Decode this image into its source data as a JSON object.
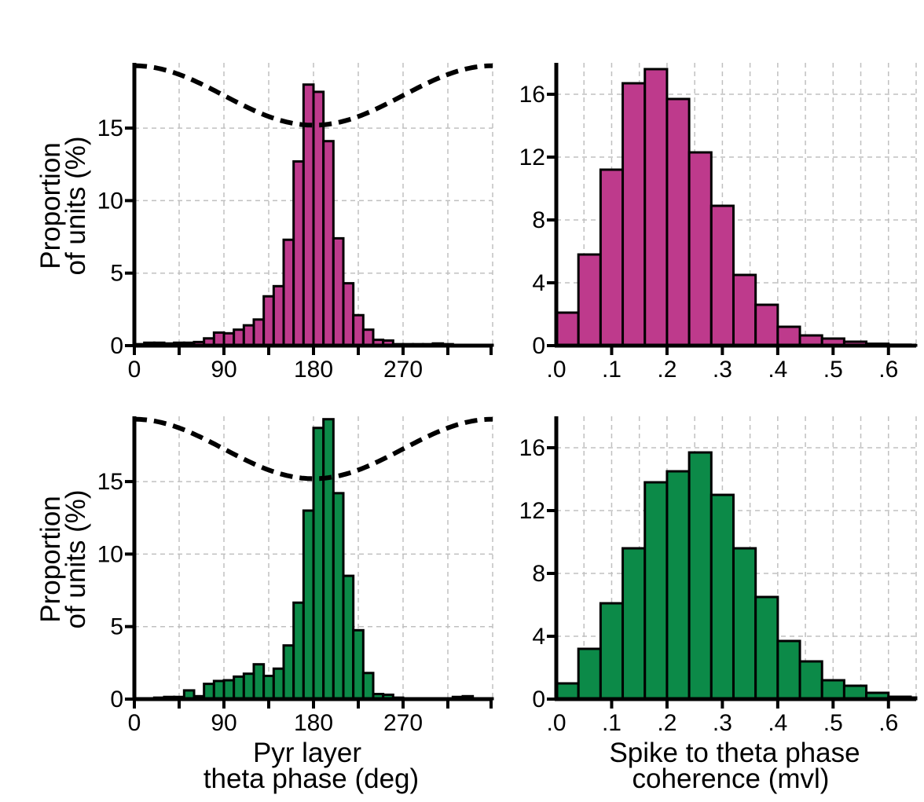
{
  "colors": {
    "magenta": "#BE3A8C",
    "green": "#0C8A48",
    "grid": "#c0c0c0",
    "axis": "#000000"
  },
  "labels": {
    "ylabel_line1": "Proportion",
    "ylabel_line2": "of units (%)",
    "xlabel_phase_line1": "Pyr layer",
    "xlabel_phase_line2": "theta phase (deg)",
    "xlabel_mvl_line1": "Spike to theta phase",
    "xlabel_mvl_line2": "coherence (mvl)"
  },
  "chart_data": [
    {
      "id": "phase-magenta",
      "type": "bar",
      "color": "magenta",
      "xlim": [
        0,
        360
      ],
      "ylim": [
        0,
        19.5
      ],
      "xticks": [
        0,
        90,
        180,
        270
      ],
      "xtick_labels": [
        "0",
        "90",
        "180",
        "270"
      ],
      "yticks": [
        0,
        5,
        10,
        15
      ],
      "ytick_labels": [
        "0",
        "5",
        "10",
        "15"
      ],
      "bin_width": 10,
      "bin_starts": [
        0,
        10,
        20,
        30,
        40,
        50,
        60,
        70,
        80,
        90,
        100,
        110,
        120,
        130,
        140,
        150,
        160,
        170,
        180,
        190,
        200,
        210,
        220,
        230,
        240,
        250,
        260,
        270,
        280,
        290,
        300,
        310,
        320,
        330,
        340,
        350
      ],
      "values": [
        0.1,
        0.2,
        0.2,
        0.15,
        0.2,
        0.2,
        0.25,
        0.5,
        0.9,
        0.85,
        1.1,
        1.4,
        1.8,
        3.4,
        4.1,
        7.3,
        12.7,
        18.0,
        17.5,
        14.1,
        7.4,
        4.3,
        2.1,
        1.1,
        0.4,
        0.35,
        0.1,
        0.1,
        0.1,
        0.1,
        0.15,
        0.1,
        0.05,
        0.05,
        0.05,
        0.05
      ],
      "reference_wave": {
        "style": "dashed",
        "min_at_deg": 180,
        "value_at_0": 19.3,
        "value_at_180": 15.2
      },
      "xlabel": "",
      "ylabel": ""
    },
    {
      "id": "mvl-magenta",
      "type": "bar",
      "color": "magenta",
      "xlim": [
        0,
        0.65
      ],
      "ylim": [
        0,
        18
      ],
      "xticks": [
        0,
        0.1,
        0.2,
        0.3,
        0.4,
        0.5,
        0.6
      ],
      "xtick_labels": [
        ".0",
        ".1",
        ".2",
        ".3",
        ".4",
        ".5",
        ".6"
      ],
      "yticks": [
        0,
        4,
        8,
        12,
        16
      ],
      "ytick_labels": [
        "0",
        "4",
        "8",
        "12",
        "16"
      ],
      "bin_width": 0.04,
      "bin_starts": [
        0,
        0.04,
        0.08,
        0.12,
        0.16,
        0.2,
        0.24,
        0.28,
        0.32,
        0.36,
        0.4,
        0.44,
        0.48,
        0.52,
        0.56,
        0.6,
        0.64
      ],
      "values": [
        2.1,
        5.8,
        11.2,
        16.7,
        17.6,
        15.7,
        12.3,
        8.9,
        4.5,
        2.6,
        1.2,
        0.65,
        0.45,
        0.25,
        0.12,
        0.06,
        0.03
      ],
      "xlabel": "",
      "ylabel": ""
    },
    {
      "id": "phase-green",
      "type": "bar",
      "color": "green",
      "xlim": [
        0,
        360
      ],
      "ylim": [
        0,
        19.5
      ],
      "xticks": [
        0,
        90,
        180,
        270
      ],
      "xtick_labels": [
        "0",
        "90",
        "180",
        "270"
      ],
      "yticks": [
        0,
        5,
        10,
        15
      ],
      "ytick_labels": [
        "0",
        "5",
        "10",
        "15"
      ],
      "bin_width": 10,
      "bin_starts": [
        0,
        10,
        20,
        30,
        40,
        50,
        60,
        70,
        80,
        90,
        100,
        110,
        120,
        130,
        140,
        150,
        160,
        170,
        180,
        190,
        200,
        210,
        220,
        230,
        240,
        250,
        260,
        270,
        280,
        290,
        300,
        310,
        320,
        330,
        340,
        350
      ],
      "values": [
        0.05,
        0.05,
        0.1,
        0.15,
        0.15,
        0.6,
        0.2,
        1.05,
        1.25,
        1.3,
        1.55,
        1.75,
        2.4,
        1.6,
        2.1,
        3.7,
        6.65,
        13.0,
        18.7,
        19.3,
        14.2,
        8.5,
        4.75,
        1.8,
        0.35,
        0.3,
        0.1,
        0.05,
        0.05,
        0.05,
        0.05,
        0.05,
        0.15,
        0.2,
        0.05,
        0.05
      ],
      "reference_wave": {
        "style": "dashed",
        "min_at_deg": 180,
        "value_at_0": 19.3,
        "value_at_180": 15.2
      },
      "xlabel": "",
      "ylabel": ""
    },
    {
      "id": "mvl-green",
      "type": "bar",
      "color": "green",
      "xlim": [
        0,
        0.65
      ],
      "ylim": [
        0,
        18
      ],
      "xticks": [
        0,
        0.1,
        0.2,
        0.3,
        0.4,
        0.5,
        0.6
      ],
      "xtick_labels": [
        ".0",
        ".1",
        ".2",
        ".3",
        ".4",
        ".5",
        ".6"
      ],
      "yticks": [
        0,
        4,
        8,
        12,
        16
      ],
      "ytick_labels": [
        "0",
        "4",
        "8",
        "12",
        "16"
      ],
      "bin_width": 0.04,
      "bin_starts": [
        0,
        0.04,
        0.08,
        0.12,
        0.16,
        0.2,
        0.24,
        0.28,
        0.32,
        0.36,
        0.4,
        0.44,
        0.48,
        0.52,
        0.56,
        0.6,
        0.64
      ],
      "values": [
        1.0,
        3.2,
        6.1,
        9.6,
        13.8,
        14.5,
        15.7,
        13.0,
        9.6,
        6.5,
        3.7,
        2.4,
        1.2,
        0.85,
        0.4,
        0.15,
        0.1
      ],
      "xlabel": "",
      "ylabel": ""
    }
  ]
}
